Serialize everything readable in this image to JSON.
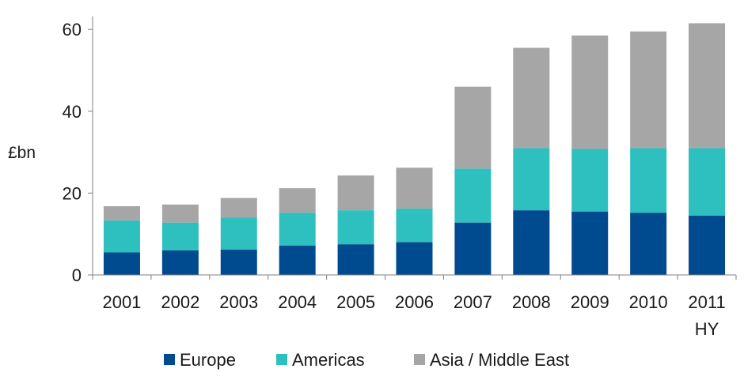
{
  "chart_data": {
    "type": "bar",
    "stacked": true,
    "categories": [
      "2001",
      "2002",
      "2003",
      "2004",
      "2005",
      "2006",
      "2007",
      "2008",
      "2009",
      "2010",
      "2011 HY"
    ],
    "series": [
      {
        "name": "Europe",
        "color": "#004A8F",
        "values": [
          5.5,
          6.0,
          6.2,
          7.2,
          7.5,
          8.0,
          12.8,
          15.8,
          15.5,
          15.2,
          14.5
        ]
      },
      {
        "name": "Americas",
        "color": "#2EBFBF",
        "values": [
          7.8,
          6.8,
          7.8,
          8.0,
          8.3,
          8.2,
          13.2,
          15.2,
          15.3,
          15.8,
          16.5
        ]
      },
      {
        "name": "Asia / Middle East",
        "color": "#A6A6A6",
        "values": [
          3.5,
          4.4,
          4.8,
          6.0,
          8.5,
          10.0,
          20.0,
          24.5,
          27.7,
          28.5,
          30.5
        ]
      }
    ],
    "ylabel": "£bn",
    "ylim": [
      0,
      64
    ],
    "yticks": [
      0,
      20,
      40,
      60
    ],
    "grid": false,
    "legend_position": "bottom"
  }
}
